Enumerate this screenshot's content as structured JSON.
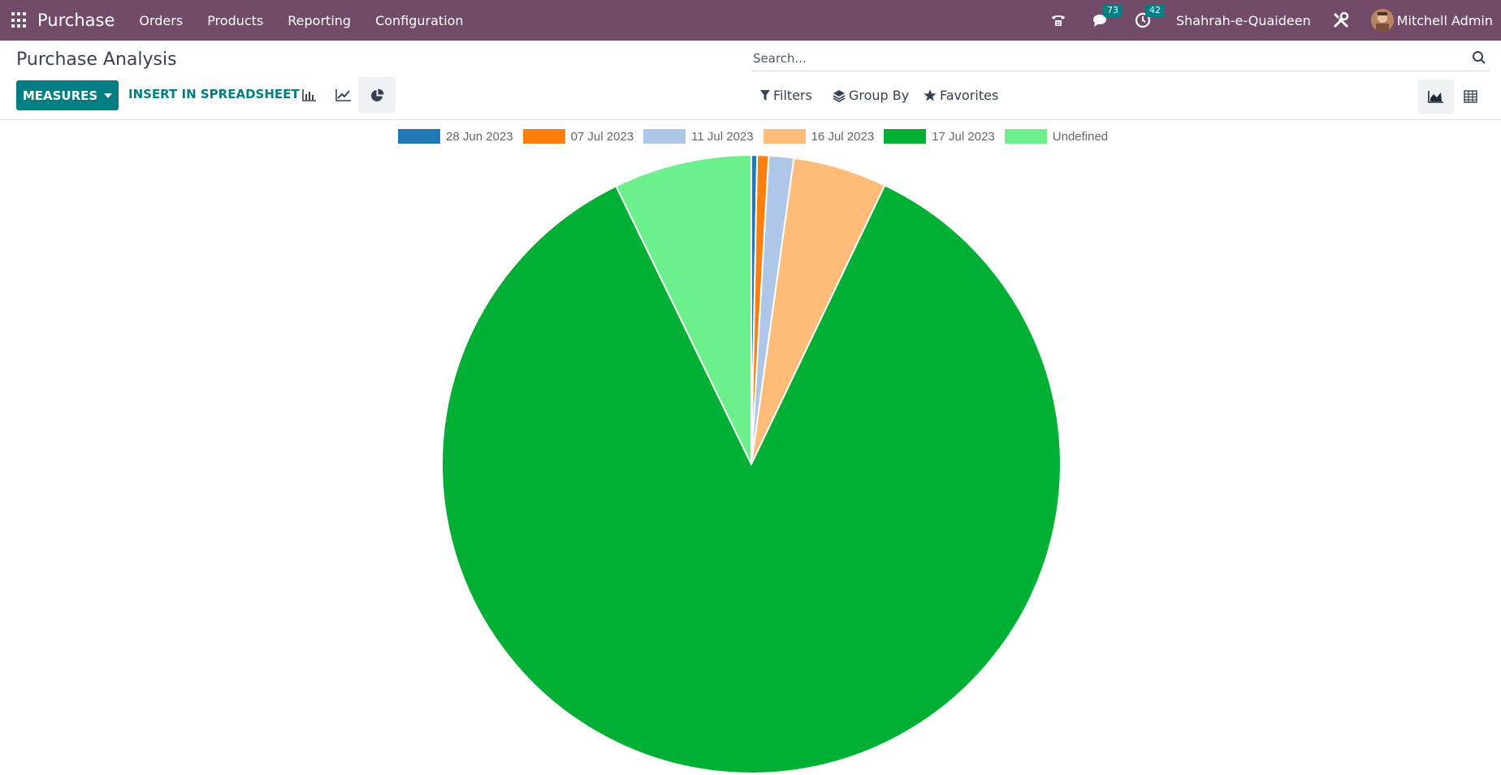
{
  "navbar": {
    "brand": "Purchase",
    "menu": [
      "Orders",
      "Products",
      "Reporting",
      "Configuration"
    ],
    "messages_count": "73",
    "activities_count": "42",
    "company": "Shahrah-e-Quaideen",
    "user": "Mitchell Admin",
    "icons": [
      "apps-grid-icon",
      "phone-icon",
      "chat-icon",
      "clock-icon",
      "tools-icon"
    ]
  },
  "control": {
    "title": "Purchase Analysis",
    "search_placeholder": "Search...",
    "measures_label": "MEASURES",
    "spreadsheet_label": "INSERT IN SPREADSHEET",
    "filters_label": "Filters",
    "groupby_label": "Group By",
    "favorites_label": "Favorites",
    "chart_types": [
      "bar-chart-icon",
      "line-chart-icon",
      "pie-chart-icon"
    ],
    "active_chart_type": "pie",
    "views": [
      "graph-view-icon",
      "pivot-view-icon"
    ],
    "active_view": "graph"
  },
  "chart_data": {
    "type": "pie",
    "legend_position": "top",
    "categories": [
      "28 Jun 2023",
      "07 Jul 2023",
      "11 Jul 2023",
      "16 Jul 2023",
      "17 Jul 2023",
      "Undefined"
    ],
    "values": [
      0.3,
      0.6,
      1.3,
      4.9,
      85.7,
      7.2
    ],
    "colors": [
      "#1f77b4",
      "#ff7f0e",
      "#aec7e8",
      "#ffbb78",
      "#00b034",
      "#6bf08b"
    ]
  }
}
